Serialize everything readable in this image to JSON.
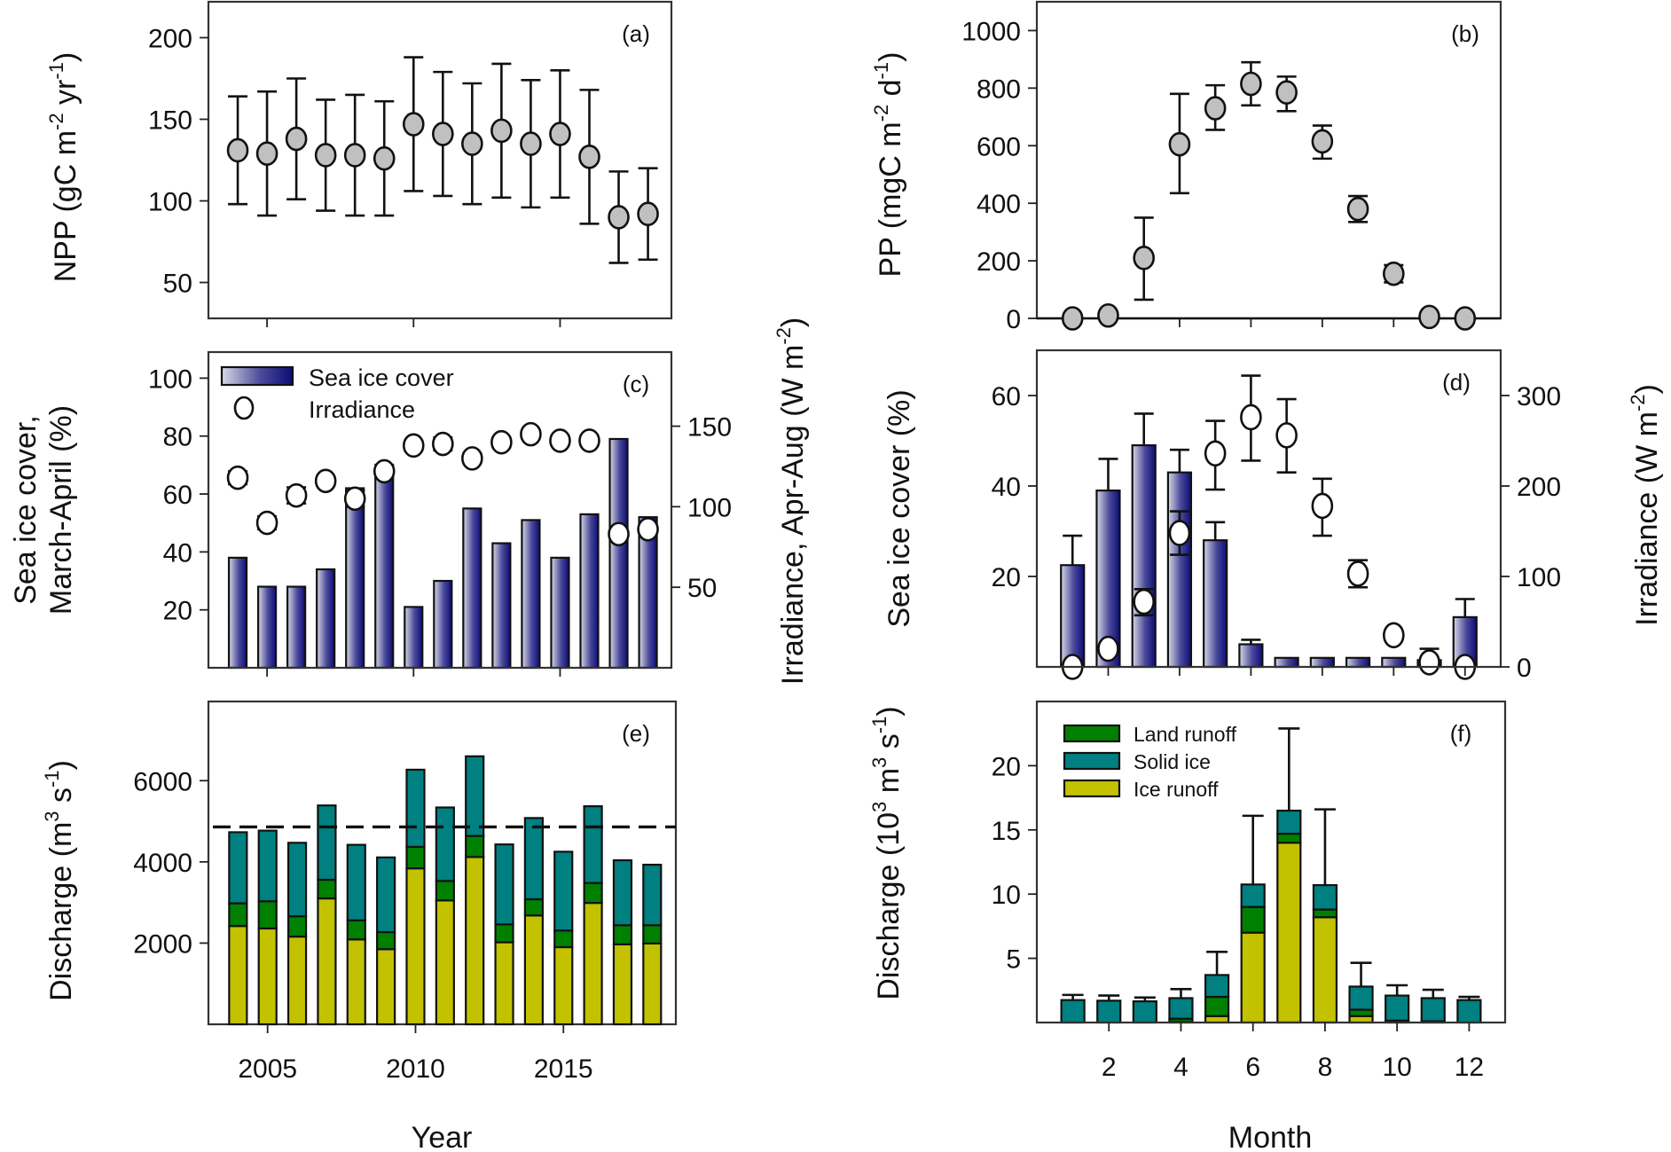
{
  "figure": {
    "year_axis_title": "Year",
    "month_axis_title": "Month"
  },
  "chart_data": [
    {
      "id": "a",
      "panel_label": "(a)",
      "type": "scatter",
      "title": "",
      "xlabel": "",
      "ylabel": "NPP (gC m",
      "ylabel_parts": [
        "NPP (gC m",
        "-2",
        " yr",
        "-1",
        ")"
      ],
      "x": [
        2004,
        2005,
        2006,
        2007,
        2008,
        2009,
        2010,
        2011,
        2012,
        2013,
        2014,
        2015,
        2016,
        2017,
        2018
      ],
      "xlim": [
        2003,
        2018.8
      ],
      "ylim": [
        28,
        222
      ],
      "yticks": [
        50,
        100,
        150,
        200
      ],
      "xticks": [
        2005,
        2010,
        2015
      ],
      "series": [
        {
          "name": "NPP",
          "values": [
            131,
            129,
            138,
            128,
            128,
            126,
            147,
            141,
            135,
            143,
            135,
            141,
            127,
            90,
            92
          ],
          "err_low": [
            98,
            91,
            101,
            94,
            91,
            91,
            106,
            103,
            98,
            102,
            96,
            102,
            86,
            62,
            64
          ],
          "err_high": [
            164,
            167,
            175,
            162,
            165,
            161,
            188,
            179,
            172,
            184,
            174,
            180,
            168,
            118,
            120
          ]
        }
      ],
      "grid": false
    },
    {
      "id": "b",
      "panel_label": "(b)",
      "type": "scatter",
      "title": "",
      "xlabel": "",
      "ylabel_parts": [
        "PP (mgC m",
        "-2",
        " d",
        "-1",
        ")"
      ],
      "x": [
        1,
        2,
        3,
        4,
        5,
        6,
        7,
        8,
        9,
        10,
        11,
        12
      ],
      "xlim": [
        0,
        13
      ],
      "ylim": [
        0,
        1100
      ],
      "yticks": [
        0,
        200,
        400,
        600,
        800,
        1000
      ],
      "xticks": [
        2,
        4,
        6,
        8,
        10,
        12
      ],
      "series": [
        {
          "name": "PP",
          "values": [
            0,
            10,
            210,
            605,
            730,
            815,
            785,
            615,
            380,
            155,
            5,
            0
          ],
          "err_low": [
            0,
            10,
            65,
            435,
            655,
            740,
            720,
            555,
            335,
            125,
            5,
            0
          ],
          "err_high": [
            0,
            10,
            350,
            780,
            810,
            890,
            840,
            670,
            425,
            185,
            5,
            0
          ]
        }
      ],
      "zero_line": true,
      "grid": false
    },
    {
      "id": "c",
      "panel_label": "(c)",
      "type": "bar",
      "title": "",
      "xlabel": "",
      "ylabel_line1": "Sea ice cover,",
      "ylabel_line2": "March-April  (%)",
      "y2label_parts": [
        "Irradiance, Apr-Aug (W m",
        "-2",
        ")"
      ],
      "x": [
        2004,
        2005,
        2006,
        2007,
        2008,
        2009,
        2010,
        2011,
        2012,
        2013,
        2014,
        2015,
        2016,
        2017,
        2018
      ],
      "xlim": [
        2003,
        2018.8
      ],
      "ylim": [
        0,
        109
      ],
      "yticks": [
        20,
        40,
        60,
        80,
        100
      ],
      "y2lim": [
        0,
        196
      ],
      "y2ticks": [
        50,
        100,
        150
      ],
      "xticks": [
        2005,
        2010,
        2015
      ],
      "legend": [
        "Sea ice cover",
        "Irradiance"
      ],
      "legend_position": "top-left",
      "series": [
        {
          "name": "Sea ice cover",
          "axis": "left",
          "kind": "bar",
          "values": [
            38,
            28,
            28,
            34,
            62,
            66,
            21,
            30,
            55,
            43,
            51,
            38,
            53,
            79,
            52
          ]
        },
        {
          "name": "Irradiance",
          "axis": "right",
          "kind": "scatter",
          "values": [
            118,
            90,
            107,
            116,
            105,
            122,
            138,
            139,
            130,
            140,
            145,
            141,
            141,
            83,
            86
          ],
          "err": [
            4,
            4,
            5,
            3,
            5,
            4,
            3,
            4,
            3,
            3,
            2,
            3,
            3,
            4,
            4
          ]
        }
      ],
      "grid": false
    },
    {
      "id": "d",
      "panel_label": "(d)",
      "type": "bar",
      "title": "",
      "xlabel": "",
      "ylabel": "Sea ice cover   (%)",
      "y2label_parts": [
        "Irradiance (W m",
        "-2",
        ")"
      ],
      "x": [
        1,
        2,
        3,
        4,
        5,
        6,
        7,
        8,
        9,
        10,
        11,
        12
      ],
      "xlim": [
        0,
        13
      ],
      "ylim": [
        0,
        70
      ],
      "yticks": [
        20,
        40,
        60
      ],
      "y2lim": [
        0,
        350
      ],
      "y2ticks": [
        0,
        100,
        200,
        300
      ],
      "xticks": [
        2,
        4,
        6,
        8,
        10,
        12
      ],
      "series": [
        {
          "name": "Sea ice cover",
          "axis": "left",
          "kind": "bar",
          "values": [
            22.5,
            39,
            49,
            43,
            28,
            5,
            2,
            2,
            2,
            2,
            1.5,
            11
          ],
          "err_high": [
            29,
            46,
            56,
            48,
            32,
            6,
            2,
            2,
            2,
            2,
            4,
            15
          ]
        },
        {
          "name": "Irradiance",
          "axis": "right",
          "kind": "scatter",
          "values": [
            0,
            20,
            72,
            148,
            236,
            276,
            256,
            178,
            103,
            35,
            5,
            0
          ],
          "err_low": [
            0,
            20,
            57,
            124,
            196,
            228,
            215,
            145,
            88,
            32,
            5,
            0
          ],
          "err_high": [
            0,
            20,
            86,
            172,
            272,
            322,
            296,
            208,
            118,
            38,
            5,
            0
          ]
        }
      ],
      "grid": false
    },
    {
      "id": "e",
      "panel_label": "(e)",
      "type": "bar",
      "stacked": true,
      "title": "",
      "xlabel": "",
      "ylabel_parts": [
        "Discharge (m",
        "3",
        " s",
        "-1",
        ")"
      ],
      "x": [
        2004,
        2005,
        2006,
        2007,
        2008,
        2009,
        2010,
        2011,
        2012,
        2013,
        2014,
        2015,
        2016,
        2017,
        2018
      ],
      "xlim": [
        2003,
        2018.8
      ],
      "ylim": [
        0,
        7950
      ],
      "yticks": [
        2000,
        4000,
        6000
      ],
      "xticks": [
        2005,
        2010,
        2015
      ],
      "reference_line": {
        "value": 4860,
        "style": "dashed"
      },
      "series": [
        {
          "name": "Ice runoff",
          "values": [
            2420,
            2360,
            2160,
            3100,
            2090,
            1850,
            3840,
            3050,
            4120,
            2020,
            2680,
            1900,
            2990,
            1970,
            1990
          ]
        },
        {
          "name": "Land runoff",
          "values": [
            560,
            670,
            500,
            460,
            470,
            420,
            530,
            480,
            520,
            440,
            400,
            410,
            490,
            470,
            450
          ]
        },
        {
          "name": "Solid ice",
          "values": [
            1750,
            1740,
            1810,
            1830,
            1860,
            1840,
            1900,
            1810,
            1960,
            1970,
            2000,
            1940,
            1890,
            1600,
            1490
          ]
        }
      ],
      "grid": false
    },
    {
      "id": "f",
      "panel_label": "(f)",
      "type": "bar",
      "stacked": true,
      "title": "",
      "xlabel": "",
      "ylabel_parts": [
        "Discharge (10",
        "3",
        " m",
        "3",
        " s",
        "-1",
        ")"
      ],
      "x": [
        1,
        2,
        3,
        4,
        5,
        6,
        7,
        8,
        9,
        10,
        11,
        12
      ],
      "xlim": [
        0,
        13
      ],
      "ylim": [
        0,
        25
      ],
      "yticks": [
        5,
        10,
        15,
        20
      ],
      "xticks": [
        2,
        4,
        6,
        8,
        10,
        12
      ],
      "legend": [
        "Land runoff",
        "Solid ice",
        "Ice runoff"
      ],
      "legend_position": "top-left",
      "series": [
        {
          "name": "Ice runoff",
          "values": [
            0,
            0,
            0,
            0.05,
            0.5,
            7.0,
            14.0,
            8.2,
            0.5,
            0,
            0,
            0
          ]
        },
        {
          "name": "Land runoff",
          "values": [
            0,
            0,
            0,
            0.25,
            1.5,
            2.0,
            0.7,
            0.6,
            0.5,
            0.15,
            0.1,
            0
          ]
        },
        {
          "name": "Solid ice",
          "values": [
            1.75,
            1.7,
            1.65,
            1.6,
            1.7,
            1.75,
            1.8,
            1.9,
            1.8,
            1.95,
            1.8,
            1.75
          ]
        }
      ],
      "err_high_total": [
        2.15,
        2.1,
        1.95,
        2.6,
        5.5,
        16.1,
        22.9,
        16.6,
        4.65,
        2.9,
        2.55,
        2.0
      ],
      "grid": false
    }
  ],
  "colors": {
    "point_gray": "#c0c0c0",
    "ice_runoff": "#c2c200",
    "land_runoff": "#008000",
    "solid_ice": "#008080",
    "bar_navy_dark": "#10107f",
    "bar_navy_light": "#d6d6e6"
  }
}
